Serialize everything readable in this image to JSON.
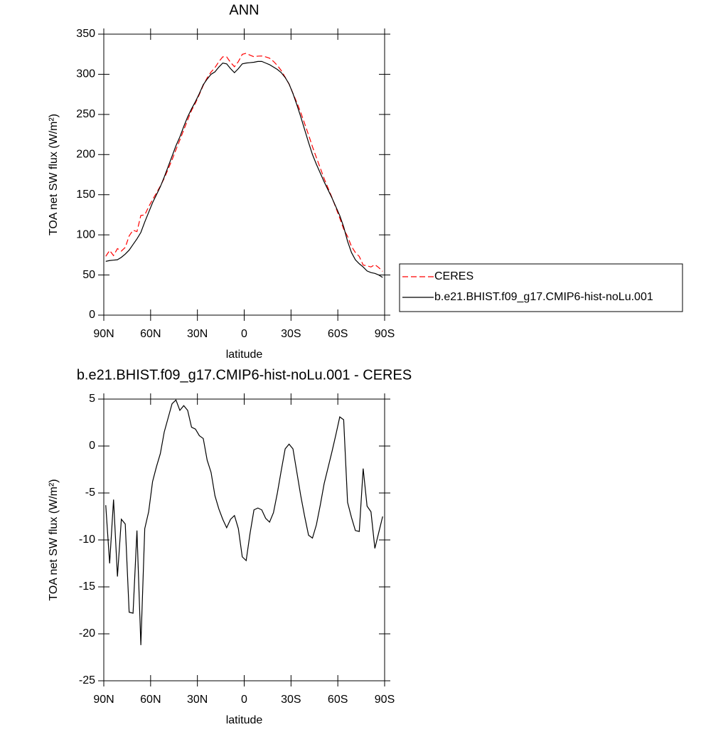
{
  "chart_data": [
    {
      "type": "line",
      "title": "ANN",
      "ylabel": "TOA net SW flux (W/m²)",
      "xlabel": "latitude",
      "x": [
        88.75,
        86.25,
        83.75,
        81.25,
        78.75,
        76.25,
        73.75,
        71.25,
        68.75,
        66.25,
        63.75,
        61.25,
        58.75,
        56.25,
        53.75,
        51.25,
        48.75,
        46.25,
        43.75,
        41.25,
        38.75,
        36.25,
        33.75,
        31.25,
        28.75,
        26.25,
        23.75,
        21.25,
        18.75,
        16.25,
        13.75,
        11.25,
        8.75,
        6.25,
        3.75,
        1.25,
        -1.25,
        -3.75,
        -6.25,
        -8.75,
        -11.25,
        -13.75,
        -16.25,
        -18.75,
        -21.25,
        -23.75,
        -26.25,
        -28.75,
        -31.25,
        -33.75,
        -36.25,
        -38.75,
        -41.25,
        -43.75,
        -46.25,
        -48.75,
        -51.25,
        -53.75,
        -56.25,
        -58.75,
        -61.25,
        -63.75,
        -66.25,
        -68.75,
        -71.25,
        -73.75,
        -76.25,
        -78.75,
        -81.25,
        -83.75,
        -86.25,
        -88.75
      ],
      "series": [
        {
          "name": "CERES",
          "color": "#ff0000",
          "linestyle": "dashed",
          "values": [
            73.3,
            80.5,
            74.2,
            82.9,
            79.8,
            84.3,
            98.7,
            105.8,
            104,
            124.2,
            124.8,
            135,
            143.8,
            152.2,
            160.8,
            170.5,
            182,
            193.5,
            206.1,
            218.2,
            230.7,
            243.2,
            255,
            264.2,
            274.9,
            286.2,
            295.5,
            302.8,
            308.3,
            315.7,
            321.8,
            321.7,
            314.8,
            309.4,
            315.8,
            324.8,
            326.2,
            323.8,
            321.8,
            322.6,
            322.8,
            321.7,
            320.1,
            316.1,
            311,
            304.6,
            296.3,
            287.8,
            276.3,
            264.8,
            252.3,
            238.5,
            224.5,
            209.8,
            196.4,
            183.3,
            170,
            158.3,
            146.6,
            133.8,
            120.9,
            107.2,
            98,
            85.6,
            78,
            73.1,
            62.4,
            61.4,
            60,
            62.9,
            59.2,
            54.5
          ]
        },
        {
          "name": "b.e21.BHIST.f09_g17.CMIP6-hist-noLu.001",
          "color": "#000000",
          "linestyle": "solid",
          "values": [
            67,
            68,
            68.5,
            69,
            72,
            76,
            81,
            88,
            95,
            103,
            116,
            128,
            140,
            150,
            160,
            172,
            185,
            198,
            211,
            222,
            235,
            247,
            257,
            266,
            276,
            287,
            294,
            300,
            303,
            309,
            314,
            313,
            307,
            302,
            307,
            313,
            314,
            314.5,
            315,
            316,
            316,
            314,
            312,
            309,
            306,
            302,
            296,
            288,
            276,
            262,
            247,
            231,
            215,
            200,
            188,
            177,
            166,
            156,
            146,
            135,
            124,
            110,
            92,
            78,
            69,
            64,
            60,
            55,
            53,
            52,
            50,
            47
          ]
        }
      ],
      "xlim": [
        90,
        -90
      ],
      "xticks": [
        {
          "value": 90,
          "label": "90N"
        },
        {
          "value": 60,
          "label": "60N"
        },
        {
          "value": 30,
          "label": "30N"
        },
        0,
        {
          "value": -30,
          "label": "30S"
        },
        {
          "value": -60,
          "label": "60S"
        },
        {
          "value": -90,
          "label": "90S"
        }
      ],
      "ylim": [
        0,
        350
      ],
      "yticks": [
        0,
        50,
        100,
        150,
        200,
        250,
        300,
        350
      ],
      "legend": "right"
    },
    {
      "type": "line",
      "title": "b.e21.BHIST.f09_g17.CMIP6-hist-noLu.001 - CERES",
      "ylabel": "TOA net SW flux (W/m²)",
      "xlabel": "latitude",
      "x": [
        88.75,
        86.25,
        83.75,
        81.25,
        78.75,
        76.25,
        73.75,
        71.25,
        68.75,
        66.25,
        63.75,
        61.25,
        58.75,
        56.25,
        53.75,
        51.25,
        48.75,
        46.25,
        43.75,
        41.25,
        38.75,
        36.25,
        33.75,
        31.25,
        28.75,
        26.25,
        23.75,
        21.25,
        18.75,
        16.25,
        13.75,
        11.25,
        8.75,
        6.25,
        3.75,
        1.25,
        -1.25,
        -3.75,
        -6.25,
        -8.75,
        -11.25,
        -13.75,
        -16.25,
        -18.75,
        -21.25,
        -23.75,
        -26.25,
        -28.75,
        -31.25,
        -33.75,
        -36.25,
        -38.75,
        -41.25,
        -43.75,
        -46.25,
        -48.75,
        -51.25,
        -53.75,
        -56.25,
        -58.75,
        -61.25,
        -63.75,
        -66.25,
        -68.75,
        -71.25,
        -73.75,
        -76.25,
        -78.75,
        -81.25,
        -83.75,
        -86.25,
        -88.75
      ],
      "values": [
        -6.3,
        -12.5,
        -5.7,
        -13.9,
        -7.8,
        -8.3,
        -17.7,
        -17.8,
        -9.0,
        -21.2,
        -8.8,
        -7,
        -3.8,
        -2.2,
        -0.8,
        1.5,
        3,
        4.5,
        4.9,
        3.8,
        4.3,
        3.8,
        2.0,
        1.8,
        1.1,
        0.8,
        -1.5,
        -2.8,
        -5.3,
        -6.7,
        -7.8,
        -8.7,
        -7.8,
        -7.4,
        -8.8,
        -11.8,
        -12.2,
        -9.3,
        -6.8,
        -6.6,
        -6.8,
        -7.7,
        -8.1,
        -7.1,
        -5,
        -2.6,
        -0.3,
        0.2,
        -0.3,
        -2.8,
        -5.3,
        -7.5,
        -9.5,
        -9.8,
        -8.4,
        -6.3,
        -4,
        -2.3,
        -0.6,
        1.2,
        3.1,
        2.8,
        -6,
        -7.6,
        -9,
        -9.1,
        -2.4,
        -6.4,
        -7,
        -10.9,
        -9.2,
        -7.5
      ],
      "color": "#000000",
      "xlim": [
        90,
        -90
      ],
      "xticks": [
        {
          "value": 90,
          "label": "90N"
        },
        {
          "value": 60,
          "label": "60N"
        },
        {
          "value": 30,
          "label": "30N"
        },
        0,
        {
          "value": -30,
          "label": "30S"
        },
        {
          "value": -60,
          "label": "60S"
        },
        {
          "value": -90,
          "label": "90S"
        }
      ],
      "ylim": [
        -25,
        5
      ],
      "yticks": [
        -25,
        -20,
        -15,
        -10,
        -5,
        0,
        5
      ]
    }
  ]
}
